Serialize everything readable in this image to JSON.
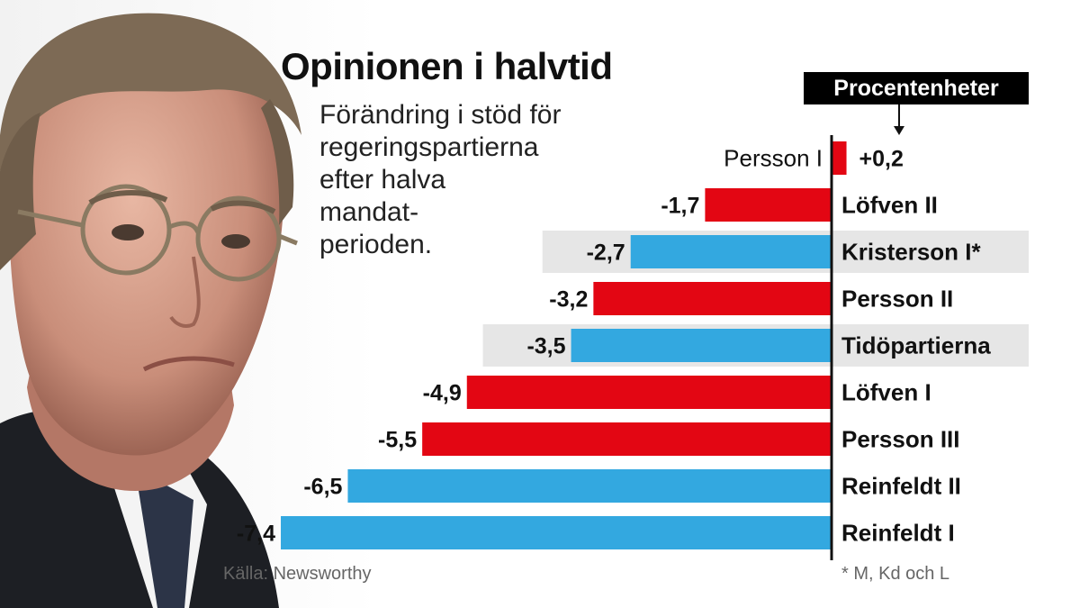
{
  "title": "Opinionen i halvtid",
  "subtitle_lines": [
    "Förändring i stöd för",
    "regeringspartierna",
    "efter halva",
    "mandat-",
    "perioden."
  ],
  "unit_label": "Procentenheter",
  "source": "Källa: Newsworthy",
  "footnote": "* M, Kd och L",
  "colors": {
    "red": "#e30613",
    "blue": "#33a8e0",
    "highlight": "#e6e6e6",
    "axis": "#111111"
  },
  "chart_data": {
    "type": "bar",
    "orientation": "horizontal",
    "categories": [
      "Persson I",
      "Löfven II",
      "Kristerson I*",
      "Persson II",
      "Tidöpartierna",
      "Löfven I",
      "Persson III",
      "Reinfeldt II",
      "Reinfeldt I"
    ],
    "values": [
      0.2,
      -1.7,
      -2.7,
      -3.2,
      -3.5,
      -4.9,
      -5.5,
      -6.5,
      -7.4
    ],
    "value_labels": [
      "+0,2",
      "-1,7",
      "-2,7",
      "-3,2",
      "-3,5",
      "-4,9",
      "-5,5",
      "-6,5",
      "-7,4"
    ],
    "bar_colors": [
      "red",
      "red",
      "blue",
      "red",
      "blue",
      "red",
      "red",
      "blue",
      "blue"
    ],
    "highlighted": [
      false,
      false,
      true,
      false,
      true,
      false,
      false,
      false,
      false
    ],
    "title": "Opinionen i halvtid",
    "xlabel": "Procentenheter",
    "xlim": [
      -7.4,
      0.2
    ]
  }
}
